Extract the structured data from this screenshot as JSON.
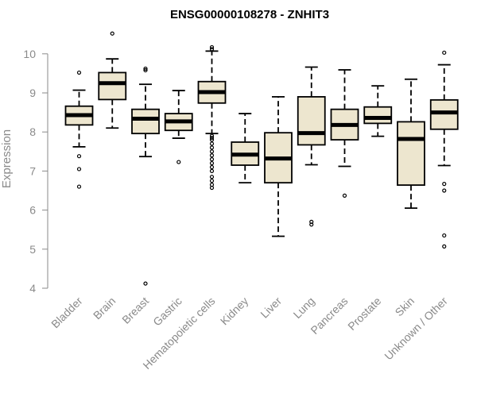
{
  "chart_data": {
    "type": "boxplot",
    "title": "ENSG00000108278 - ZNHIT3",
    "xlabel": "",
    "ylabel": "Expression",
    "ylim": [
      4,
      10.3
    ],
    "yticks": [
      4,
      5,
      6,
      7,
      8,
      9,
      10
    ],
    "box_color": "#ede6cf",
    "categories": [
      "Bladder",
      "Brain",
      "Breast",
      "Gastric",
      "Hematopoietic cells",
      "Kidney",
      "Liver",
      "Lung",
      "Pancreas",
      "Prostate",
      "Skin",
      "Unknown / Other"
    ],
    "boxes": [
      {
        "q1": 8.18,
        "median": 8.43,
        "q3": 8.66,
        "whisker_low": 7.62,
        "whisker_high": 9.07,
        "outliers": [
          9.52,
          7.38,
          7.05,
          6.6
        ]
      },
      {
        "q1": 8.83,
        "median": 9.25,
        "q3": 9.52,
        "whisker_low": 8.1,
        "whisker_high": 9.87,
        "outliers": [
          10.52
        ]
      },
      {
        "q1": 7.96,
        "median": 8.34,
        "q3": 8.58,
        "whisker_low": 7.37,
        "whisker_high": 9.22,
        "outliers": [
          9.62,
          9.58,
          4.12
        ]
      },
      {
        "q1": 8.04,
        "median": 8.27,
        "q3": 8.47,
        "whisker_low": 7.84,
        "whisker_high": 9.06,
        "outliers": [
          7.23
        ]
      },
      {
        "q1": 8.74,
        "median": 9.02,
        "q3": 9.29,
        "whisker_low": 7.96,
        "whisker_high": 10.07,
        "outliers": [
          10.17,
          10.12,
          7.9,
          7.85,
          7.8,
          7.7,
          7.6,
          7.5,
          7.4,
          7.3,
          7.2,
          7.1,
          7.0,
          6.85,
          6.75,
          6.65,
          6.57
        ]
      },
      {
        "q1": 7.15,
        "median": 7.42,
        "q3": 7.74,
        "whisker_low": 6.7,
        "whisker_high": 8.47,
        "outliers": []
      },
      {
        "q1": 6.7,
        "median": 7.32,
        "q3": 7.98,
        "whisker_low": 5.33,
        "whisker_high": 8.9,
        "outliers": []
      },
      {
        "q1": 7.67,
        "median": 7.97,
        "q3": 8.9,
        "whisker_low": 7.16,
        "whisker_high": 9.66,
        "outliers": [
          5.7,
          5.63
        ]
      },
      {
        "q1": 7.8,
        "median": 8.18,
        "q3": 8.58,
        "whisker_low": 7.12,
        "whisker_high": 9.59,
        "outliers": [
          6.37
        ]
      },
      {
        "q1": 8.22,
        "median": 8.36,
        "q3": 8.64,
        "whisker_low": 7.89,
        "whisker_high": 9.18,
        "outliers": []
      },
      {
        "q1": 6.64,
        "median": 7.82,
        "q3": 8.26,
        "whisker_low": 6.05,
        "whisker_high": 9.35,
        "outliers": []
      },
      {
        "q1": 8.07,
        "median": 8.5,
        "q3": 8.82,
        "whisker_low": 7.14,
        "whisker_high": 9.72,
        "outliers": [
          10.03,
          6.67,
          6.5,
          5.35,
          5.07
        ]
      }
    ]
  }
}
